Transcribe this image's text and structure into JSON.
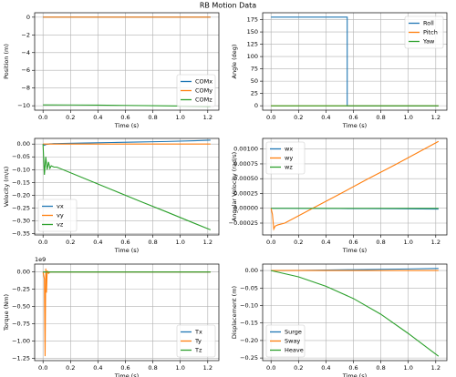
{
  "title": "RB Motion Data",
  "chart_data": [
    {
      "type": "line",
      "xlabel": "Time (s)",
      "ylabel": "Position (m)",
      "x": [
        0,
        0.2,
        0.4,
        0.6,
        0.8,
        1.0,
        1.22
      ],
      "series": [
        {
          "name": "COMx",
          "color": "#1f77b4",
          "values": [
            0,
            0,
            0,
            0,
            0,
            0,
            0.01
          ]
        },
        {
          "name": "COMy",
          "color": "#ff7f0e",
          "values": [
            0,
            0,
            0,
            0,
            0,
            0,
            0
          ]
        },
        {
          "name": "COMz",
          "color": "#2ca02c",
          "values": [
            -9.9,
            -9.91,
            -9.93,
            -9.96,
            -9.99,
            -10.03,
            -10.07
          ]
        }
      ],
      "xlim": [
        -0.061,
        1.281
      ],
      "ylim": [
        -10.5,
        0.5
      ],
      "xticks": [
        {
          "value": 0,
          "label": "0.0"
        },
        {
          "value": 0.2,
          "label": "0.2"
        },
        {
          "value": 0.4,
          "label": "0.4"
        },
        {
          "value": 0.6,
          "label": "0.6"
        },
        {
          "value": 0.8,
          "label": "0.8"
        },
        {
          "value": 1.0,
          "label": "1.0"
        },
        {
          "value": 1.2,
          "label": "1.2"
        }
      ],
      "yticks": [
        {
          "value": -10,
          "label": "−10"
        },
        {
          "value": -8,
          "label": "−8"
        },
        {
          "value": -6,
          "label": "−6"
        },
        {
          "value": -4,
          "label": "−4"
        },
        {
          "value": -2,
          "label": "−2"
        },
        0
      ],
      "grid": true,
      "legend": "lower right"
    },
    {
      "type": "line",
      "xlabel": "Time (s)",
      "ylabel": "Angle (deg)",
      "x": [
        0,
        0.555,
        0.555,
        1.22
      ],
      "series": [
        {
          "name": "Roll",
          "color": "#1f77b4",
          "values": [
            180,
            180,
            0,
            0
          ]
        },
        {
          "name": "Pitch",
          "color": "#ff7f0e",
          "values": [
            0,
            0,
            0,
            0
          ]
        },
        {
          "name": "Yaw",
          "color": "#2ca02c",
          "values": [
            0,
            0,
            0,
            0
          ]
        }
      ],
      "xlim": [
        -0.061,
        1.281
      ],
      "ylim": [
        -9,
        189
      ],
      "xticks": [
        {
          "value": 0,
          "label": "0.0"
        },
        {
          "value": 0.2,
          "label": "0.2"
        },
        {
          "value": 0.4,
          "label": "0.4"
        },
        {
          "value": 0.6,
          "label": "0.6"
        },
        {
          "value": 0.8,
          "label": "0.8"
        },
        {
          "value": 1.0,
          "label": "1.0"
        },
        {
          "value": 1.2,
          "label": "1.2"
        }
      ],
      "yticks": [
        0,
        25,
        50,
        75,
        100,
        125,
        150,
        175
      ],
      "grid": true,
      "legend": "upper right"
    },
    {
      "type": "line",
      "xlabel": "Time (s)",
      "ylabel": "Velocity (m/s)",
      "x": [
        0,
        0.01,
        0.02,
        0.03,
        0.04,
        0.05,
        0.06,
        0.08,
        0.1,
        0.3,
        0.5,
        0.7,
        0.9,
        1.1,
        1.22
      ],
      "series": [
        {
          "name": "vx",
          "color": "#1f77b4",
          "values": [
            0,
            -0.005,
            -0.002,
            -0.001,
            0,
            0.001,
            0.001,
            0.002,
            0.002,
            0.004,
            0.006,
            0.008,
            0.01,
            0.013,
            0.015
          ]
        },
        {
          "name": "vy",
          "color": "#ff7f0e",
          "values": [
            0,
            0,
            0,
            0,
            0,
            0,
            0,
            0,
            0,
            0,
            0,
            0,
            0,
            0,
            0
          ]
        },
        {
          "name": "vz",
          "color": "#2ca02c",
          "values": [
            0,
            -0.12,
            -0.05,
            -0.1,
            -0.07,
            -0.095,
            -0.085,
            -0.09,
            -0.09,
            -0.134,
            -0.178,
            -0.222,
            -0.265,
            -0.309,
            -0.335
          ]
        }
      ],
      "xlim": [
        -0.061,
        1.281
      ],
      "ylim": [
        -0.355,
        0.022
      ],
      "xticks": [
        {
          "value": 0,
          "label": "0.0"
        },
        {
          "value": 0.2,
          "label": "0.2"
        },
        {
          "value": 0.4,
          "label": "0.4"
        },
        {
          "value": 0.6,
          "label": "0.6"
        },
        {
          "value": 0.8,
          "label": "0.8"
        },
        {
          "value": 1.0,
          "label": "1.0"
        },
        {
          "value": 1.2,
          "label": "1.2"
        }
      ],
      "yticks": [
        {
          "value": -0.35,
          "label": "−0.35"
        },
        {
          "value": -0.3,
          "label": "−0.30"
        },
        {
          "value": -0.25,
          "label": "−0.25"
        },
        {
          "value": -0.2,
          "label": "−0.20"
        },
        {
          "value": -0.15,
          "label": "−0.15"
        },
        {
          "value": -0.1,
          "label": "−0.10"
        },
        {
          "value": -0.05,
          "label": "−0.05"
        },
        {
          "value": 0,
          "label": "0.00"
        }
      ],
      "grid": true,
      "legend": "lower left"
    },
    {
      "type": "line",
      "xlabel": "Time (s)",
      "ylabel": "Angular Velocity (rad/s)",
      "x": [
        0,
        0.01,
        0.02,
        0.03,
        0.05,
        0.1,
        0.3,
        0.5,
        0.7,
        0.9,
        1.1,
        1.22
      ],
      "series": [
        {
          "name": "wx",
          "color": "#1f77b4",
          "values": [
            0,
            0,
            0,
            0,
            0,
            0,
            -2e-06,
            -4e-06,
            -6e-06,
            -8e-06,
            -1e-05,
            -1.2e-05
          ]
        },
        {
          "name": "wy",
          "color": "#ff7f0e",
          "values": [
            0,
            -0.0001,
            -0.00035,
            -0.0003,
            -0.00028,
            -0.00025,
            -4e-06,
            0.00024,
            0.00049,
            0.00073,
            0.00098,
            0.00113
          ]
        },
        {
          "name": "wz",
          "color": "#2ca02c",
          "values": [
            0,
            0,
            0,
            0,
            0,
            0,
            0,
            0,
            0,
            0,
            0,
            0
          ]
        }
      ],
      "xlim": [
        -0.061,
        1.281
      ],
      "ylim": [
        -0.00045,
        0.00118
      ],
      "xticks": [
        {
          "value": 0,
          "label": "0.0"
        },
        {
          "value": 0.2,
          "label": "0.2"
        },
        {
          "value": 0.4,
          "label": "0.4"
        },
        {
          "value": 0.6,
          "label": "0.6"
        },
        {
          "value": 0.8,
          "label": "0.8"
        },
        {
          "value": 1.0,
          "label": "1.0"
        },
        {
          "value": 1.2,
          "label": "1.2"
        }
      ],
      "yticks": [
        {
          "value": -0.00025,
          "label": "−0.00025"
        },
        {
          "value": 0,
          "label": "0.00000"
        },
        {
          "value": 0.00025,
          "label": "0.00025"
        },
        {
          "value": 0.0005,
          "label": "0.00050"
        },
        {
          "value": 0.00075,
          "label": "0.00075"
        },
        {
          "value": 0.001,
          "label": "0.00100"
        }
      ],
      "grid": true,
      "legend": "upper left"
    },
    {
      "type": "line",
      "xlabel": "Time (s)",
      "ylabel": "Torque (Nm)",
      "offset_text": "1e9",
      "x": [
        0,
        0.01,
        0.015,
        0.02,
        0.025,
        0.03,
        0.04,
        0.05,
        0.1,
        1.22
      ],
      "series": [
        {
          "name": "Tx",
          "color": "#1f77b4",
          "values": [
            0,
            0,
            0,
            0,
            0,
            0,
            0,
            0,
            0,
            0
          ]
        },
        {
          "name": "Ty",
          "color": "#ff7f0e",
          "values": [
            0,
            -0.1,
            -1.22,
            0.05,
            -0.3,
            0.02,
            -0.02,
            0,
            0,
            0
          ]
        },
        {
          "name": "Tz",
          "color": "#2ca02c",
          "values": [
            0,
            0,
            0,
            0,
            0,
            0,
            0,
            0,
            0,
            0
          ]
        }
      ],
      "xlim": [
        -0.061,
        1.281
      ],
      "ylim": [
        -1.285,
        0.115
      ],
      "xticks": [
        {
          "value": 0,
          "label": "0.0"
        },
        {
          "value": 0.2,
          "label": "0.2"
        },
        {
          "value": 0.4,
          "label": "0.4"
        },
        {
          "value": 0.6,
          "label": "0.6"
        },
        {
          "value": 0.8,
          "label": "0.8"
        },
        {
          "value": 1.0,
          "label": "1.0"
        },
        {
          "value": 1.2,
          "label": "1.2"
        }
      ],
      "yticks": [
        {
          "value": -1.25,
          "label": "−1.25"
        },
        {
          "value": -1.0,
          "label": "−1.00"
        },
        {
          "value": -0.75,
          "label": "−0.75"
        },
        {
          "value": -0.5,
          "label": "−0.50"
        },
        {
          "value": -0.25,
          "label": "−0.25"
        },
        {
          "value": 0,
          "label": "0.00"
        }
      ],
      "grid": true,
      "legend": "lower right"
    },
    {
      "type": "line",
      "xlabel": "Time (s)",
      "ylabel": "Displacement (m)",
      "x": [
        0,
        0.2,
        0.4,
        0.6,
        0.8,
        1.0,
        1.22
      ],
      "series": [
        {
          "name": "Surge",
          "color": "#1f77b4",
          "values": [
            0,
            0.0005,
            0.0015,
            0.0025,
            0.0035,
            0.0045,
            0.006
          ]
        },
        {
          "name": "Sway",
          "color": "#ff7f0e",
          "values": [
            0,
            0,
            0,
            0,
            0,
            0,
            0
          ]
        },
        {
          "name": "Heave",
          "color": "#2ca02c",
          "values": [
            0,
            -0.018,
            -0.045,
            -0.08,
            -0.125,
            -0.18,
            -0.245
          ]
        }
      ],
      "xlim": [
        -0.061,
        1.281
      ],
      "ylim": [
        -0.2575,
        0.0185
      ],
      "xticks": [
        {
          "value": 0,
          "label": "0.0"
        },
        {
          "value": 0.2,
          "label": "0.2"
        },
        {
          "value": 0.4,
          "label": "0.4"
        },
        {
          "value": 0.6,
          "label": "0.6"
        },
        {
          "value": 0.8,
          "label": "0.8"
        },
        {
          "value": 1.0,
          "label": "1.0"
        },
        {
          "value": 1.2,
          "label": "1.2"
        }
      ],
      "yticks": [
        {
          "value": -0.25,
          "label": "−0.25"
        },
        {
          "value": -0.2,
          "label": "−0.20"
        },
        {
          "value": -0.15,
          "label": "−0.15"
        },
        {
          "value": -0.1,
          "label": "−0.10"
        },
        {
          "value": -0.05,
          "label": "−0.05"
        },
        {
          "value": 0,
          "label": "0.00"
        }
      ],
      "grid": true,
      "legend": "lower left"
    }
  ]
}
